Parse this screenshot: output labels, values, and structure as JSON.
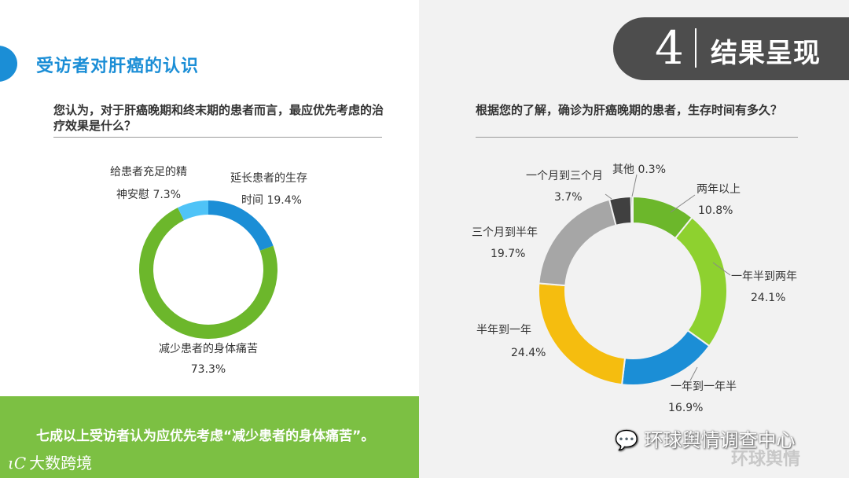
{
  "header": {
    "section_title": "受访者对肝癌的认识",
    "banner_number": "4",
    "banner_text": "结果呈现"
  },
  "left_question": "您认为，对于肝癌晚期和终末期的患者而言，最应优先考虑的治疗效果是什么？",
  "right_question": "根据您的了解，确诊为肝癌晚期的患者，生存时间有多久？",
  "footer": {
    "conclusion": "七成以上受访者认为应优先考虑“减少患者的身体痛苦”。",
    "logo_left_mark": "ιC",
    "logo_left_text": "大数跨境",
    "wechat_text": "环球舆情调查中心",
    "watermark": "环球舆情"
  },
  "chart_data": [
    {
      "type": "donut",
      "slices": [
        {
          "label_line1": "延长患者的生存",
          "label_line2": "时间",
          "value": 19.4,
          "value_text": "19.4%",
          "color": "#1b8ed6"
        },
        {
          "label_line1": "减少患者的身体痛苦",
          "label_line2": "",
          "value": 73.3,
          "value_text": "73.3%",
          "color": "#6cb72b"
        },
        {
          "label_line1": "给患者充足的精",
          "label_line2": "神安慰",
          "value": 7.3,
          "value_text": "7.3%",
          "color": "#4fc3f7"
        }
      ]
    },
    {
      "type": "donut",
      "slices": [
        {
          "label": "两年以上",
          "value": 10.8,
          "value_text": "10.8%",
          "color": "#6cb72b"
        },
        {
          "label": "一年半到两年",
          "value": 24.1,
          "value_text": "24.1%",
          "color": "#8ed12f"
        },
        {
          "label": "一年到一年半",
          "value": 16.9,
          "value_text": "16.9%",
          "color": "#1b8ed6"
        },
        {
          "label": "半年到一年",
          "value": 24.4,
          "value_text": "24.4%",
          "color": "#f5bd0f"
        },
        {
          "label": "三个月到半年",
          "value": 19.7,
          "value_text": "19.7%",
          "color": "#a6a6a6"
        },
        {
          "label": "一个月到三个月",
          "value": 3.7,
          "value_text": "3.7%",
          "color": "#404040"
        },
        {
          "label": "其他",
          "value": 0.3,
          "value_text": "0.3%",
          "color": "#2f6f3a"
        }
      ]
    }
  ]
}
